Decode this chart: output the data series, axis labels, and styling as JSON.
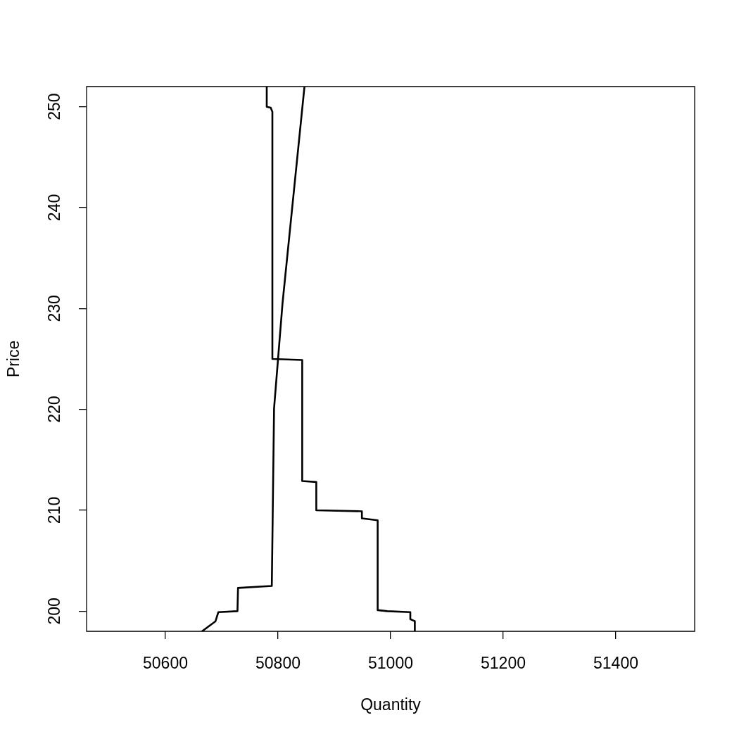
{
  "chart_data": {
    "type": "line",
    "xlabel": "Quantity",
    "ylabel": "Price",
    "xlim": [
      50460,
      51540
    ],
    "ylim": [
      198,
      252
    ],
    "xticks": [
      50600,
      50800,
      51000,
      51200,
      51400
    ],
    "yticks": [
      200,
      210,
      220,
      230,
      240,
      250
    ],
    "series": [
      {
        "color": "#000000",
        "x": [
          50780,
          50780,
          50787,
          50790,
          50790,
          50843,
          50843,
          50868,
          50868,
          50949,
          50949,
          50977,
          50977,
          50994,
          51035,
          51035,
          51043,
          51043
        ],
        "values": [
          252,
          250.0,
          249.9,
          249.5,
          225.0,
          224.9,
          212.9,
          212.8,
          210.0,
          209.9,
          209.2,
          209.0,
          200.1,
          200.0,
          199.9,
          199.2,
          199.0,
          198
        ]
      },
      {
        "color": "#000000",
        "x": [
          50665,
          50689,
          50694,
          50728,
          50729,
          50789,
          50793,
          50808,
          50847
        ],
        "values": [
          198,
          199.0,
          199.9,
          200.0,
          202.3,
          202.5,
          220.1,
          230.5,
          252
        ]
      }
    ]
  }
}
